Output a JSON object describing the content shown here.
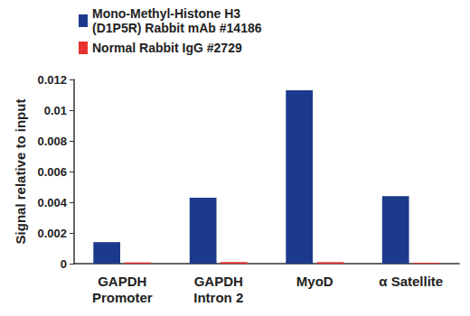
{
  "chart_data": {
    "type": "bar",
    "y_label": "Signal relative to input",
    "categories": [
      "GAPDH\nPromoter",
      "GAPDH\nIntron 2",
      "MyoD",
      "α Satellite"
    ],
    "series": [
      {
        "name": "Mono-Methyl-Histone H3\n(D1P5R) Rabbit mAb #14186",
        "color": "#1c3a8c",
        "values": [
          0.0014,
          0.0043,
          0.0113,
          0.0044
        ]
      },
      {
        "name": "Normal Rabbit IgG #2729",
        "color": "#e8312f",
        "values": [
          8e-05,
          0.0001,
          0.0001,
          6e-05
        ]
      }
    ],
    "ylim": [
      0,
      0.012
    ],
    "yticks": [
      0,
      0.002,
      0.004,
      0.006,
      0.008,
      0.01,
      0.012
    ],
    "grid": false,
    "legend": "top-left"
  }
}
